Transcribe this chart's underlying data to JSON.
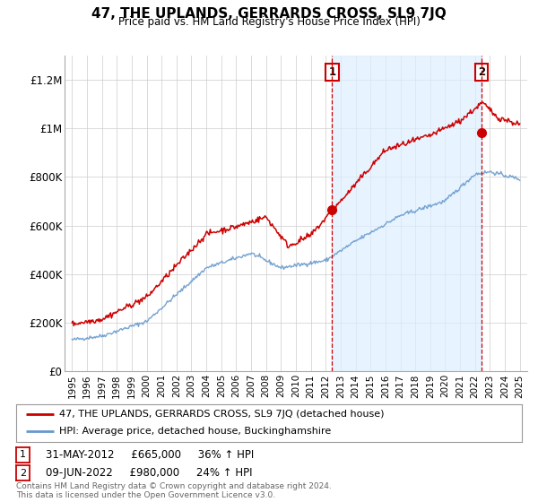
{
  "title": "47, THE UPLANDS, GERRARDS CROSS, SL9 7JQ",
  "subtitle": "Price paid vs. HM Land Registry's House Price Index (HPI)",
  "ylabel_ticks": [
    "£0",
    "£200K",
    "£400K",
    "£600K",
    "£800K",
    "£1M",
    "£1.2M"
  ],
  "ytick_values": [
    0,
    200000,
    400000,
    600000,
    800000,
    1000000,
    1200000
  ],
  "ylim": [
    0,
    1300000
  ],
  "xlim": [
    1994.5,
    2025.5
  ],
  "red_color": "#cc0000",
  "blue_color": "#6699cc",
  "shade_color": "#ddeeff",
  "marker1_year": 2012.42,
  "marker1_value": 665000,
  "marker2_year": 2022.44,
  "marker2_value": 980000,
  "legend_label_red": "47, THE UPLANDS, GERRARDS CROSS, SL9 7JQ (detached house)",
  "legend_label_blue": "HPI: Average price, detached house, Buckinghamshire",
  "annotation1_label": "1",
  "annotation2_label": "2",
  "table_row1": [
    "1",
    "31-MAY-2012",
    "£665,000",
    "36% ↑ HPI"
  ],
  "table_row2": [
    "2",
    "09-JUN-2022",
    "£980,000",
    "24% ↑ HPI"
  ],
  "footer": "Contains HM Land Registry data © Crown copyright and database right 2024.\nThis data is licensed under the Open Government Licence v3.0.",
  "background_color": "#ffffff",
  "grid_color": "#cccccc"
}
